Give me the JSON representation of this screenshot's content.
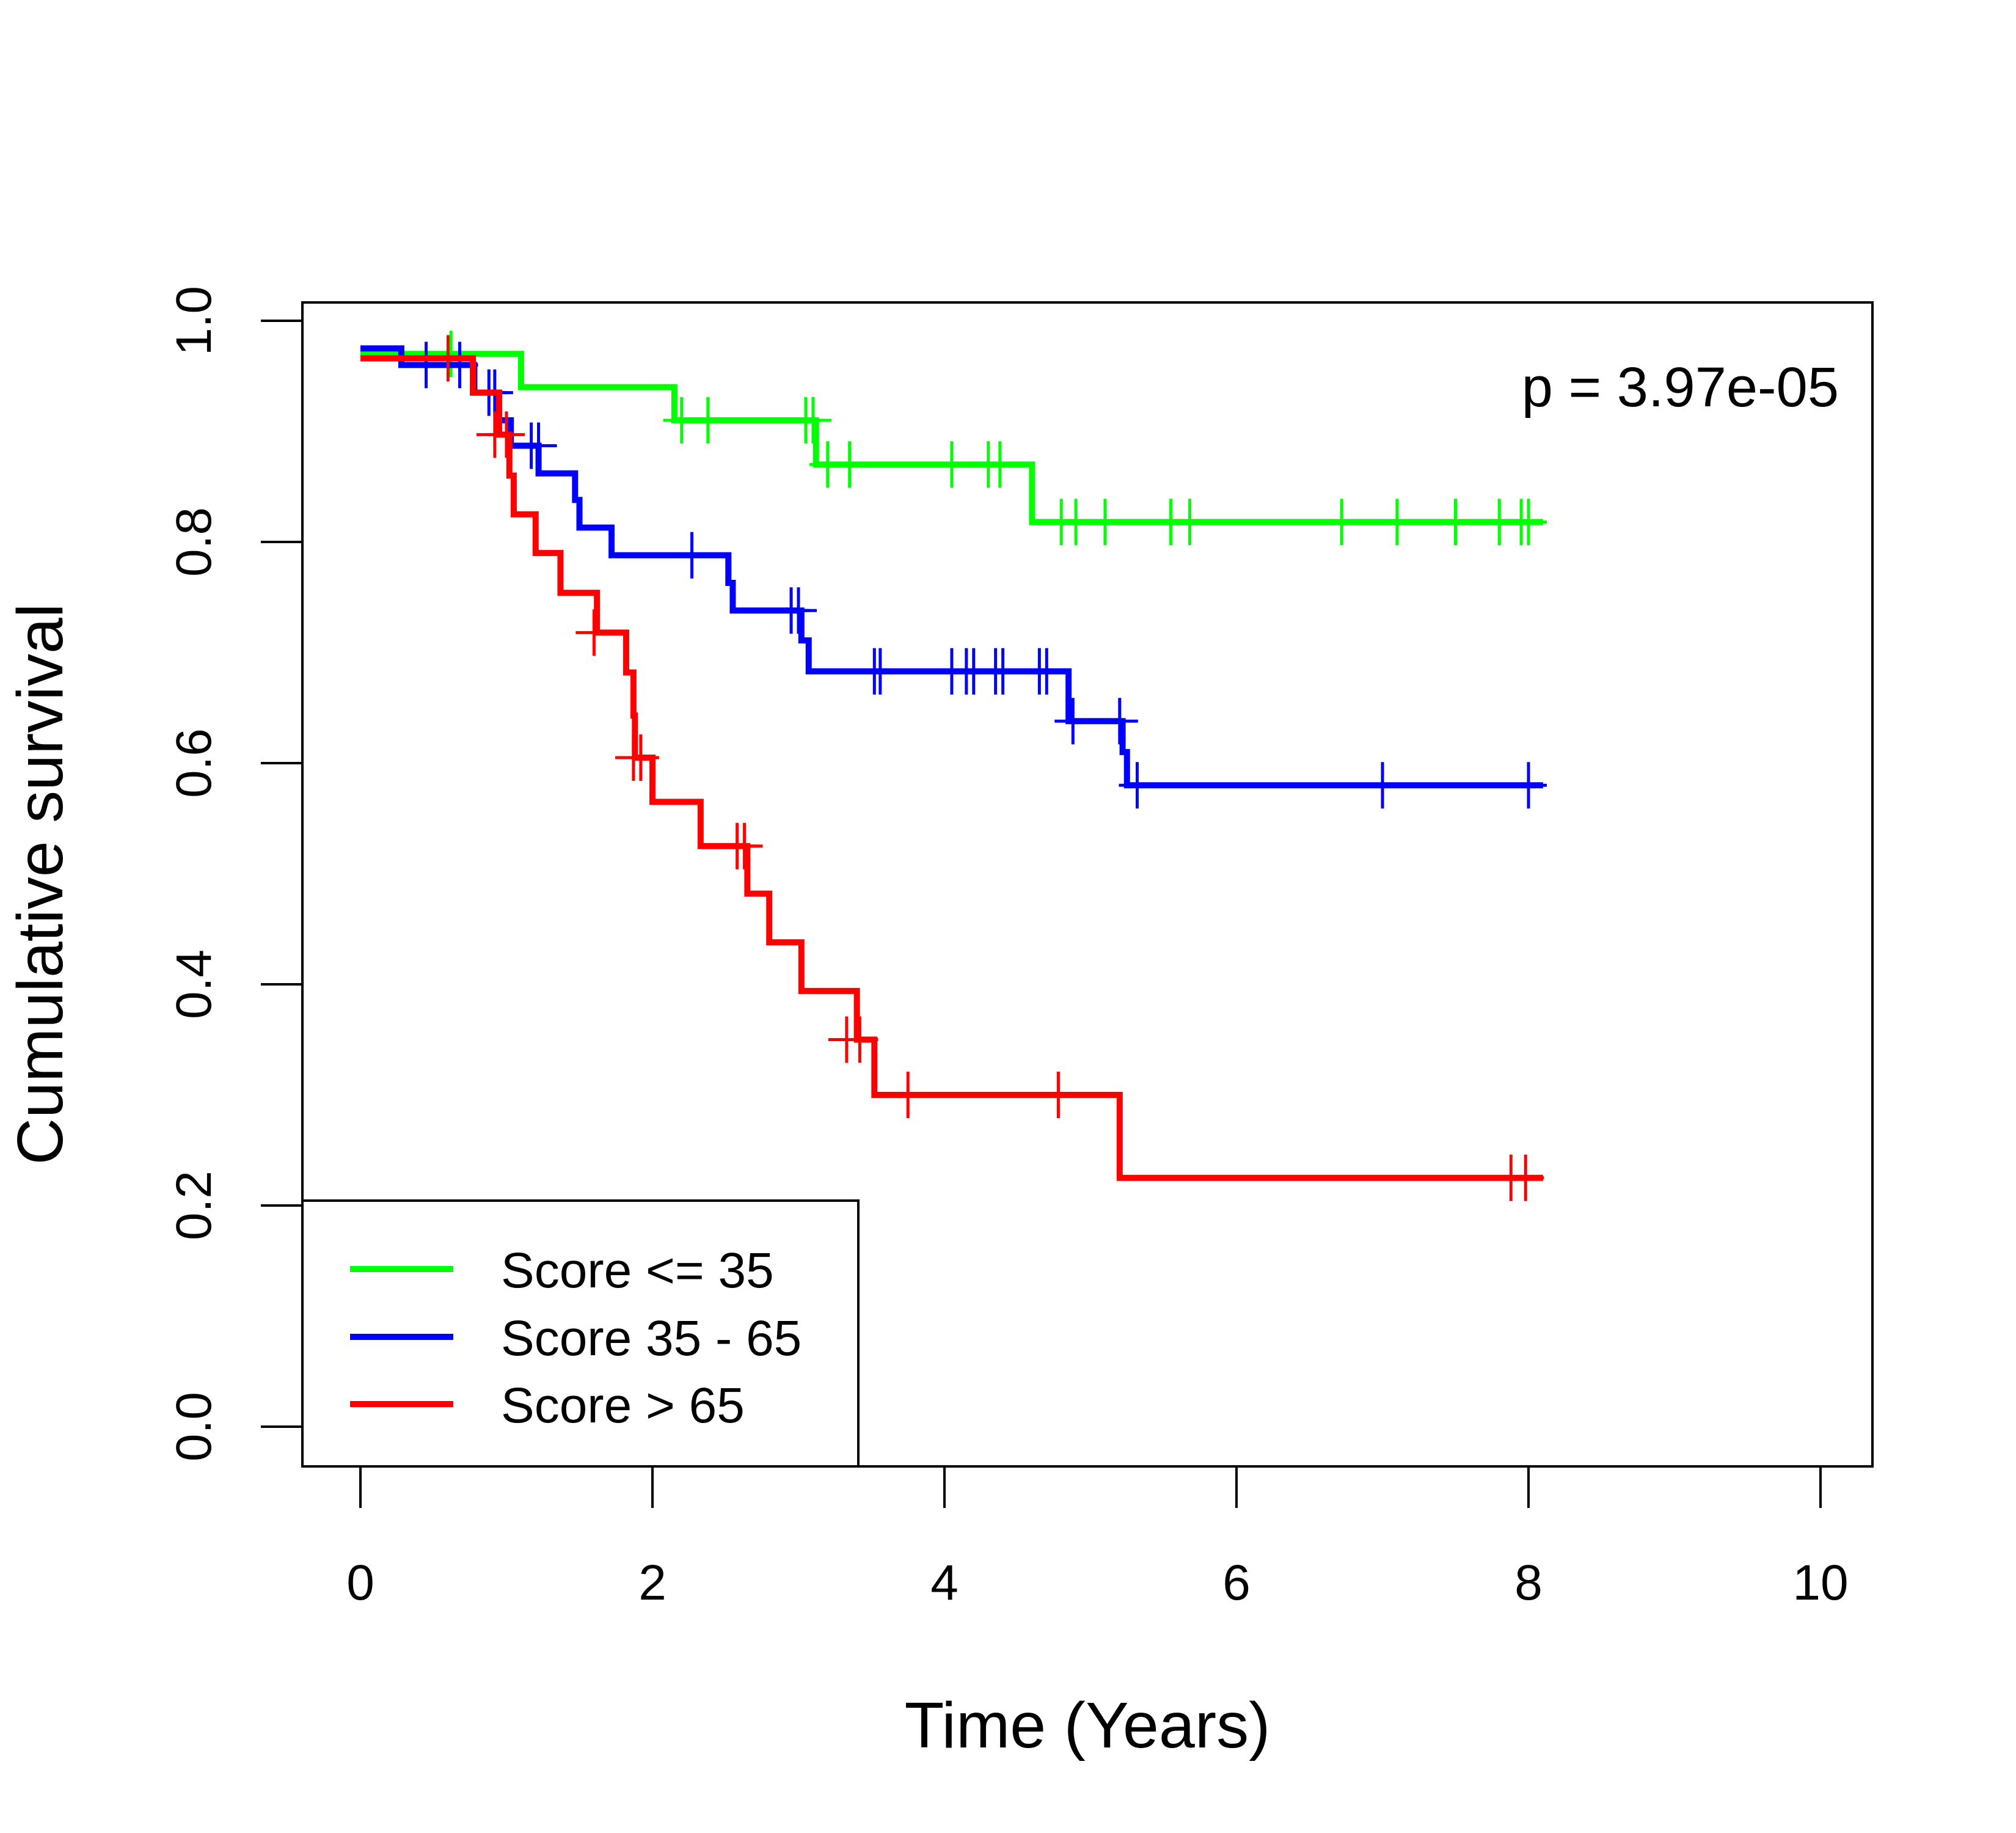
{
  "chart_data": {
    "type": "line",
    "subtype": "kaplan-meier-step",
    "title": "",
    "xlabel": "Time (Years)",
    "ylabel": "Cumulative survival",
    "xlim": [
      0,
      10
    ],
    "ylim": [
      0,
      1
    ],
    "xticks": [
      "0",
      "2",
      "4",
      "6",
      "8",
      "10"
    ],
    "yticks": [
      "0.0",
      "0.2",
      "0.4",
      "0.6",
      "0.8",
      "1.0"
    ],
    "grid": false,
    "legend_position": "bottom-left",
    "annotation": "p = 3.97e-05",
    "series": [
      {
        "name": "Score <= 35",
        "color": "#00ff00",
        "steps": [
          [
            0,
            0.97
          ],
          [
            1.1,
            0.94
          ],
          [
            2.15,
            0.91
          ],
          [
            3.12,
            0.87
          ],
          [
            4.6,
            0.818
          ],
          [
            8.1,
            0.818
          ]
        ],
        "censored": [
          [
            0.62,
            0.97
          ],
          [
            2.2,
            0.91
          ],
          [
            2.38,
            0.91
          ],
          [
            3.05,
            0.91
          ],
          [
            3.1,
            0.91
          ],
          [
            3.2,
            0.87
          ],
          [
            3.35,
            0.87
          ],
          [
            4.05,
            0.87
          ],
          [
            4.3,
            0.87
          ],
          [
            4.38,
            0.87
          ],
          [
            4.8,
            0.818
          ],
          [
            4.9,
            0.818
          ],
          [
            5.1,
            0.818
          ],
          [
            5.55,
            0.818
          ],
          [
            5.68,
            0.818
          ],
          [
            6.72,
            0.818
          ],
          [
            7.1,
            0.818
          ],
          [
            7.5,
            0.818
          ],
          [
            7.8,
            0.818
          ],
          [
            7.95,
            0.818
          ],
          [
            8.0,
            0.818
          ]
        ]
      },
      {
        "name": "Score 35 - 65",
        "color": "#0000ff",
        "steps": [
          [
            0,
            0.975
          ],
          [
            0.28,
            0.96
          ],
          [
            0.78,
            0.935
          ],
          [
            0.95,
            0.91
          ],
          [
            1.03,
            0.887
          ],
          [
            1.22,
            0.862
          ],
          [
            1.47,
            0.838
          ],
          [
            1.5,
            0.813
          ],
          [
            1.72,
            0.788
          ],
          [
            2.52,
            0.763
          ],
          [
            2.55,
            0.738
          ],
          [
            3.02,
            0.711
          ],
          [
            3.07,
            0.683
          ],
          [
            4.85,
            0.638
          ],
          [
            5.22,
            0.61
          ],
          [
            5.25,
            0.58
          ],
          [
            8.1,
            0.58
          ]
        ],
        "censored": [
          [
            0.45,
            0.96
          ],
          [
            0.68,
            0.96
          ],
          [
            0.88,
            0.935
          ],
          [
            0.92,
            0.935
          ],
          [
            1.17,
            0.887
          ],
          [
            1.22,
            0.887
          ],
          [
            2.27,
            0.788
          ],
          [
            2.95,
            0.738
          ],
          [
            3.0,
            0.738
          ],
          [
            3.52,
            0.683
          ],
          [
            3.56,
            0.683
          ],
          [
            4.05,
            0.683
          ],
          [
            4.15,
            0.683
          ],
          [
            4.2,
            0.683
          ],
          [
            4.35,
            0.683
          ],
          [
            4.4,
            0.683
          ],
          [
            4.65,
            0.683
          ],
          [
            4.7,
            0.683
          ],
          [
            4.88,
            0.638
          ],
          [
            5.2,
            0.638
          ],
          [
            5.32,
            0.58
          ],
          [
            7.0,
            0.58
          ],
          [
            8.0,
            0.58
          ]
        ]
      },
      {
        "name": "Score > 65",
        "color": "#ff0000",
        "steps": [
          [
            0,
            0.966
          ],
          [
            0.77,
            0.935
          ],
          [
            0.95,
            0.897
          ],
          [
            1.02,
            0.86
          ],
          [
            1.05,
            0.825
          ],
          [
            1.2,
            0.79
          ],
          [
            1.37,
            0.754
          ],
          [
            1.62,
            0.718
          ],
          [
            1.82,
            0.682
          ],
          [
            1.87,
            0.643
          ],
          [
            1.88,
            0.605
          ],
          [
            2.0,
            0.565
          ],
          [
            2.33,
            0.525
          ],
          [
            2.65,
            0.482
          ],
          [
            2.8,
            0.438
          ],
          [
            3.02,
            0.394
          ],
          [
            3.4,
            0.35
          ],
          [
            3.52,
            0.3
          ],
          [
            5.2,
            0.225
          ],
          [
            8.1,
            0.225
          ]
        ],
        "censored": [
          [
            0.6,
            0.966
          ],
          [
            0.92,
            0.897
          ],
          [
            1.0,
            0.897
          ],
          [
            1.6,
            0.718
          ],
          [
            1.87,
            0.605
          ],
          [
            1.92,
            0.605
          ],
          [
            2.58,
            0.525
          ],
          [
            2.63,
            0.525
          ],
          [
            3.33,
            0.35
          ],
          [
            3.42,
            0.35
          ],
          [
            3.75,
            0.3
          ],
          [
            4.78,
            0.3
          ],
          [
            7.88,
            0.225
          ],
          [
            7.98,
            0.225
          ]
        ]
      }
    ]
  }
}
